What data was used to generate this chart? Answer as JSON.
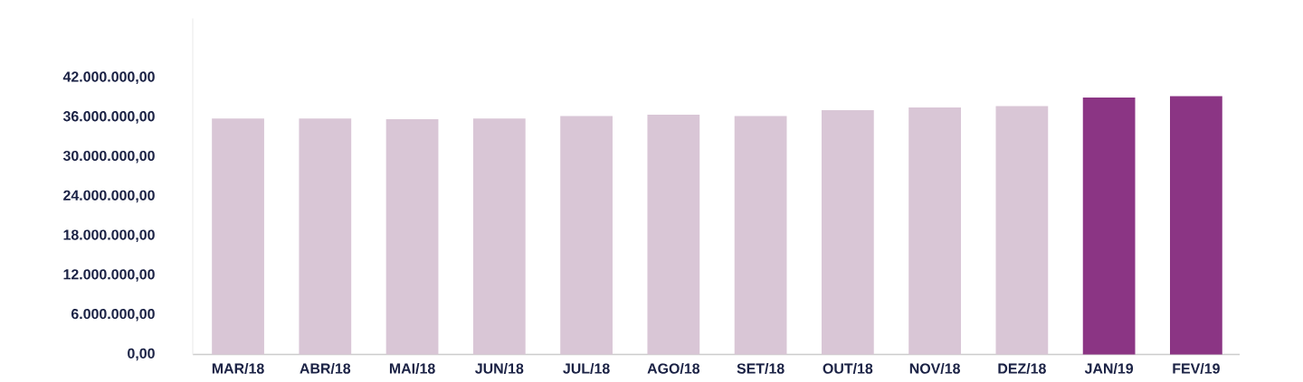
{
  "chart_data": {
    "type": "bar",
    "categories": [
      "MAR/18",
      "ABR/18",
      "MAI/18",
      "JUN/18",
      "JUL/18",
      "AGO/18",
      "SET/18",
      "OUT/18",
      "NOV/18",
      "DEZ/18",
      "JAN/19",
      "FEV/19"
    ],
    "values": [
      35800000,
      35800000,
      35700000,
      35800000,
      36200000,
      36400000,
      36200000,
      37100000,
      37500000,
      37700000,
      39000000,
      39200000
    ],
    "colors": [
      "#d9c6d6",
      "#d9c6d6",
      "#d9c6d6",
      "#d9c6d6",
      "#d9c6d6",
      "#d9c6d6",
      "#d9c6d6",
      "#d9c6d6",
      "#d9c6d6",
      "#d9c6d6",
      "#8b3584",
      "#8b3584"
    ],
    "ylim": [
      0,
      51000000
    ],
    "yticks": [
      {
        "value": 0,
        "label": "0,00"
      },
      {
        "value": 6000000,
        "label": "6.000.000,00"
      },
      {
        "value": 12000000,
        "label": "12.000.000,00"
      },
      {
        "value": 18000000,
        "label": "18.000.000,00"
      },
      {
        "value": 24000000,
        "label": "24.000.000,00"
      },
      {
        "value": 30000000,
        "label": "30.000.000,00"
      },
      {
        "value": 36000000,
        "label": "36.000.000,00"
      },
      {
        "value": 42000000,
        "label": "42.000.000,00"
      }
    ]
  }
}
